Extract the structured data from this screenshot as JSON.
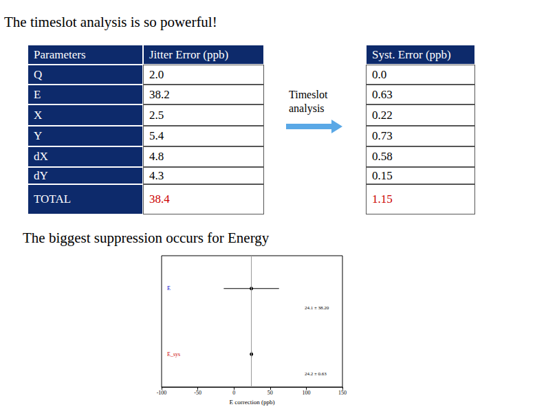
{
  "title": "The timeslot analysis is so powerful!",
  "table": {
    "header": [
      "Parameters",
      "Jitter Error (ppb)",
      "Syst. Error (ppb)"
    ],
    "rows": [
      [
        "Q",
        "2.0",
        "0.0"
      ],
      [
        "E",
        "38.2",
        "0.63"
      ],
      [
        "X",
        "2.5",
        "0.22"
      ],
      [
        "Y",
        "5.4",
        "0.73"
      ],
      [
        "dX",
        "4.8",
        "0.58"
      ],
      [
        "dY",
        "4.3",
        "0.15"
      ],
      [
        "TOTAL",
        "38.4",
        "1.15"
      ]
    ]
  },
  "arrow_label": "Timeslot analysis",
  "caption": "The biggest suppression occurs for Energy",
  "chart_data": {
    "type": "errorbar",
    "orientation": "horizontal",
    "categories": [
      "E",
      "E_sys"
    ],
    "values": [
      24.1,
      24.2
    ],
    "errors": [
      38.2,
      0.63
    ],
    "value_labels": [
      "24.1 ± 38.20",
      "24.2 ± 0.63"
    ],
    "colors": [
      "#0000cc",
      "#cc0000"
    ],
    "marker": "circle",
    "x_label": "E correction (ppb)",
    "xlim": [
      -100,
      150
    ],
    "xticks": [
      -100,
      -50,
      0,
      50,
      100,
      150
    ],
    "grid": false
  }
}
